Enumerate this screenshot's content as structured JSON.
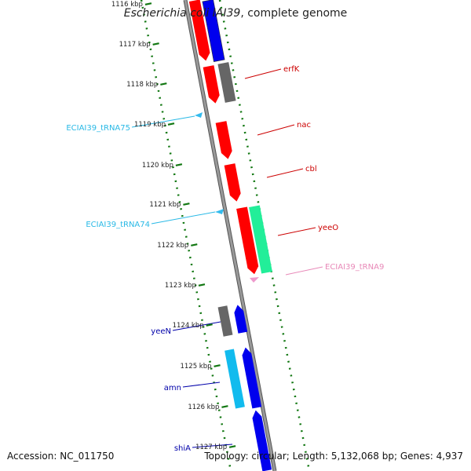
{
  "title": {
    "organism": "Escherichia coli IAI39",
    "suffix": ", complete genome"
  },
  "footer": {
    "accession": "Accession: NC_011750",
    "topology": "Topology: circular",
    "length": "Length: 5,132,068 bp",
    "genes": "Genes: 4,937"
  },
  "scale": {
    "ticks": [
      "1116 kbp",
      "1117 kbp",
      "1118 kbp",
      "1119 kbp",
      "1120 kbp",
      "1121 kbp",
      "1122 kbp",
      "1123 kbp",
      "1124 kbp",
      "1125 kbp",
      "1126 kbp",
      "1127 kbp"
    ]
  },
  "features": [
    {
      "name": "erfK",
      "color": "#cc0000"
    },
    {
      "name": "nac",
      "color": "#cc0000"
    },
    {
      "name": "cbl",
      "color": "#cc0000"
    },
    {
      "name": "yeeO",
      "color": "#cc0000"
    },
    {
      "name": "ECIAI39_tRNA9",
      "color": "#e889b8"
    },
    {
      "name": "ECIAI39_tRNA75",
      "color": "#29b9e6"
    },
    {
      "name": "ECIAI39_tRNA74",
      "color": "#29b9e6"
    },
    {
      "name": "yeeN",
      "color": "#0000aa"
    },
    {
      "name": "amn",
      "color": "#0000aa"
    },
    {
      "name": "shiA",
      "color": "#0000aa"
    }
  ],
  "colors": {
    "backbone": "#888888",
    "tick": "#117711",
    "cds_red": "#ff0000",
    "cds_blue": "#0000ee",
    "cds_gray": "#666666",
    "cds_green": "#22ee99",
    "cds_cyan": "#11bbee",
    "trna_blue": "#33bbee",
    "trna_pink": "#ee99cc"
  }
}
